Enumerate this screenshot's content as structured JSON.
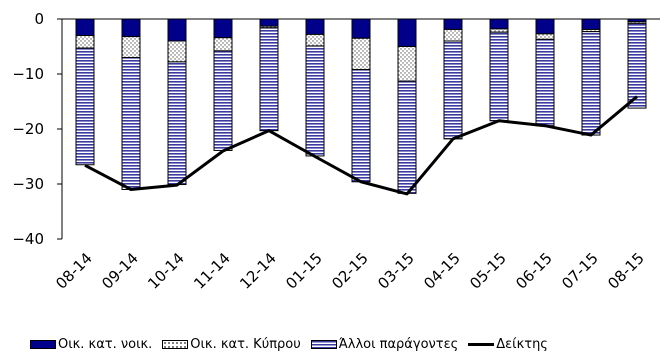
{
  "chart_data": {
    "type": "bar",
    "stacked": true,
    "categories": [
      "08-14",
      "09-14",
      "10-14",
      "11-14",
      "12-14",
      "01-15",
      "02-15",
      "03-15",
      "04-15",
      "05-15",
      "06-15",
      "07-15",
      "08-15"
    ],
    "ylim": [
      -40,
      0
    ],
    "yticks": [
      0,
      -10,
      -20,
      -30,
      -40
    ],
    "grid": false,
    "legend_position": "bottom",
    "series": [
      {
        "name": "Οικ. κατ. νοικ.",
        "kind": "bar",
        "color": "#00008b",
        "pattern": "solid",
        "values": [
          -3.0,
          -3.2,
          -4.0,
          -3.4,
          -1.3,
          -2.8,
          -3.5,
          -5.0,
          -1.9,
          -1.8,
          -2.7,
          -1.9,
          -0.5
        ]
      },
      {
        "name": "Οικ. κατ. Κύπρου",
        "kind": "bar",
        "color": "#ffffff",
        "pattern": "dots",
        "values": [
          -2.3,
          -3.8,
          -3.8,
          -2.4,
          -0.3,
          -2.1,
          -5.7,
          -6.3,
          -2.1,
          -0.6,
          -1.0,
          -0.4,
          -0.3
        ]
      },
      {
        "name": "Άλλοι παράγοντες",
        "kind": "bar",
        "color": "#9999cc",
        "pattern": "hstripes",
        "values": [
          -21.2,
          -24.0,
          -22.3,
          -18.1,
          -18.7,
          -20.0,
          -20.4,
          -20.4,
          -17.8,
          -16.1,
          -15.7,
          -18.8,
          -15.4
        ]
      },
      {
        "name": "Δείκτης",
        "kind": "line",
        "color": "#000000",
        "values": [
          -26.6,
          -31.0,
          -30.2,
          -24.0,
          -20.3,
          -25.0,
          -29.6,
          -31.8,
          -21.8,
          -18.5,
          -19.4,
          -21.1,
          -14.1
        ]
      }
    ]
  }
}
